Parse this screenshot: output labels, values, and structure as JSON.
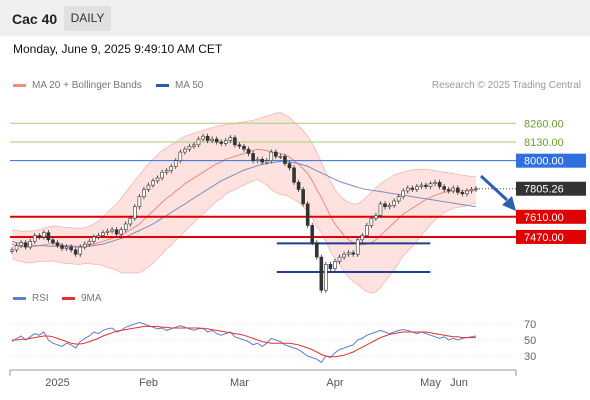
{
  "header": {
    "instrument": "Cac 40",
    "period_tab": "DAILY",
    "timestamp": "Monday, June 9, 2025 9:49:10 AM CET"
  },
  "legend": {
    "main": [
      {
        "label": "MA 20 + Bollinger Bands",
        "color": "#f28b82"
      },
      {
        "label": "MA 50",
        "color": "#2a5aa8"
      }
    ],
    "credit": "Research © 2025 Trading Central",
    "rsi": [
      {
        "label": "RSI",
        "color": "#5b7fd6"
      },
      {
        "label": "9MA",
        "color": "#e53030"
      }
    ]
  },
  "chart_data": [
    {
      "type": "candlestick",
      "title": "Cac 40",
      "ylim": [
        7150,
        8380
      ],
      "current_price": {
        "value": "7805.26",
        "y": 7805.26
      },
      "levels": [
        {
          "label": "8260.00",
          "value": 8260,
          "kind": "resistance-2"
        },
        {
          "label": "8130.00",
          "value": 8130,
          "kind": "resistance-1"
        },
        {
          "label": "8000.00",
          "value": 8000,
          "kind": "pivot"
        },
        {
          "label": "7610.00",
          "value": 7610,
          "kind": "support-1"
        },
        {
          "label": "7470.00",
          "value": 7470,
          "kind": "support-2"
        }
      ],
      "range_markers": [
        {
          "value": 7425,
          "from": "2025-03-28",
          "to": "2025-05-05"
        },
        {
          "value": 6990,
          "from": "2025-03-28",
          "to": "2025-05-05"
        }
      ],
      "x_ticks": [
        "2025",
        "Feb",
        "Mar",
        "Apr",
        "May",
        "Jun"
      ],
      "closes": [
        7380,
        7410,
        7430,
        7400,
        7440,
        7480,
        7470,
        7500,
        7450,
        7430,
        7410,
        7390,
        7400,
        7380,
        7350,
        7400,
        7420,
        7440,
        7470,
        7480,
        7500,
        7510,
        7520,
        7490,
        7520,
        7560,
        7600,
        7680,
        7750,
        7800,
        7830,
        7860,
        7880,
        7920,
        7930,
        7960,
        8000,
        8060,
        8080,
        8100,
        8110,
        8150,
        8170,
        8140,
        8150,
        8130,
        8120,
        8140,
        8160,
        8110,
        8100,
        8080,
        8050,
        8000,
        8010,
        7990,
        8000,
        8060,
        8030,
        8030,
        7980,
        7950,
        7850,
        7800,
        7700,
        7550,
        7430,
        7330,
        7100,
        7280,
        7250,
        7300,
        7330,
        7350,
        7360,
        7350,
        7450,
        7480,
        7550,
        7600,
        7620,
        7700,
        7680,
        7690,
        7720,
        7750,
        7790,
        7810,
        7800,
        7820,
        7830,
        7820,
        7840,
        7850,
        7820,
        7800,
        7790,
        7810,
        7780,
        7770,
        7790,
        7800,
        7805
      ],
      "ma20": [
        7420,
        7410,
        7405,
        7400,
        7400,
        7405,
        7410,
        7415,
        7420,
        7425,
        7420,
        7415,
        7410,
        7410,
        7405,
        7405,
        7410,
        7415,
        7420,
        7430,
        7440,
        7450,
        7460,
        7470,
        7480,
        7500,
        7520,
        7540,
        7560,
        7590,
        7620,
        7650,
        7680,
        7710,
        7740,
        7760,
        7790,
        7810,
        7840,
        7860,
        7880,
        7900,
        7920,
        7940,
        7960,
        7980,
        7990,
        8010,
        8020,
        8030,
        8040,
        8050,
        8060,
        8070,
        8080,
        8075,
        8070,
        8060,
        8055,
        8050,
        8040,
        8025,
        8000,
        7975,
        7945,
        7910,
        7860,
        7800,
        7745,
        7680,
        7615,
        7560,
        7520,
        7480,
        7450,
        7430,
        7420,
        7415,
        7420,
        7430,
        7450,
        7480,
        7510,
        7540,
        7570,
        7600,
        7630,
        7650,
        7670,
        7690,
        7710,
        7730,
        7745,
        7760,
        7770,
        7780,
        7785,
        7790,
        7790,
        7790,
        7790,
        7795,
        7795
      ],
      "bb_upper": [
        7520,
        7515,
        7510,
        7510,
        7510,
        7515,
        7520,
        7530,
        7540,
        7545,
        7545,
        7540,
        7535,
        7535,
        7530,
        7530,
        7535,
        7545,
        7560,
        7580,
        7610,
        7640,
        7670,
        7700,
        7740,
        7780,
        7820,
        7860,
        7900,
        7940,
        7980,
        8010,
        8040,
        8070,
        8090,
        8110,
        8130,
        8150,
        8170,
        8180,
        8190,
        8200,
        8210,
        8220,
        8230,
        8240,
        8245,
        8250,
        8255,
        8260,
        8265,
        8270,
        8275,
        8280,
        8290,
        8300,
        8310,
        8320,
        8330,
        8335,
        8320,
        8300,
        8270,
        8240,
        8210,
        8170,
        8120,
        8060,
        7990,
        7920,
        7860,
        7800,
        7760,
        7730,
        7710,
        7700,
        7700,
        7720,
        7750,
        7780,
        7810,
        7840,
        7860,
        7880,
        7900,
        7910,
        7920,
        7930,
        7935,
        7940,
        7940,
        7940,
        7935,
        7930,
        7925,
        7920,
        7915,
        7910,
        7905,
        7900,
        7895,
        7890,
        7890
      ],
      "bb_lower": [
        7320,
        7305,
        7300,
        7290,
        7290,
        7295,
        7300,
        7300,
        7300,
        7305,
        7295,
        7290,
        7285,
        7285,
        7280,
        7280,
        7285,
        7285,
        7280,
        7280,
        7270,
        7260,
        7250,
        7240,
        7220,
        7220,
        7220,
        7220,
        7220,
        7240,
        7260,
        7290,
        7320,
        7350,
        7390,
        7410,
        7450,
        7470,
        7510,
        7540,
        7570,
        7600,
        7630,
        7660,
        7690,
        7720,
        7735,
        7770,
        7785,
        7800,
        7815,
        7830,
        7845,
        7860,
        7870,
        7850,
        7830,
        7800,
        7780,
        7765,
        7760,
        7750,
        7730,
        7710,
        7680,
        7650,
        7600,
        7540,
        7500,
        7440,
        7370,
        7320,
        7280,
        7230,
        7190,
        7160,
        7140,
        7110,
        7090,
        7080,
        7090,
        7120,
        7160,
        7200,
        7240,
        7290,
        7340,
        7370,
        7405,
        7440,
        7480,
        7520,
        7555,
        7590,
        7615,
        7640,
        7655,
        7670,
        7675,
        7680,
        7685,
        7700,
        7700
      ],
      "ma50": [
        7440,
        7430,
        7425,
        7420,
        7415,
        7410,
        7410,
        7410,
        7405,
        7405,
        7405,
        7405,
        7405,
        7405,
        7400,
        7400,
        7400,
        7405,
        7410,
        7415,
        7420,
        7430,
        7440,
        7450,
        7460,
        7470,
        7485,
        7500,
        7515,
        7530,
        7545,
        7560,
        7580,
        7600,
        7620,
        7640,
        7660,
        7680,
        7700,
        7720,
        7740,
        7760,
        7780,
        7800,
        7820,
        7840,
        7860,
        7875,
        7890,
        7905,
        7920,
        7935,
        7945,
        7955,
        7965,
        7975,
        7980,
        7985,
        7990,
        7995,
        7995,
        7990,
        7985,
        7980,
        7970,
        7960,
        7945,
        7930,
        7915,
        7900,
        7885,
        7870,
        7855,
        7845,
        7835,
        7825,
        7815,
        7805,
        7800,
        7795,
        7790,
        7785,
        7780,
        7775,
        7770,
        7765,
        7760,
        7755,
        7750,
        7745,
        7740,
        7735,
        7730,
        7725,
        7720,
        7715,
        7710,
        7705,
        7700,
        7695,
        7690,
        7685,
        7680
      ]
    },
    {
      "type": "line",
      "title": "RSI",
      "ylim": [
        20,
        80
      ],
      "y_ticks": [
        {
          "label": "70",
          "value": 70
        },
        {
          "label": "50",
          "value": 50
        },
        {
          "label": "30",
          "value": 30
        }
      ],
      "series": [
        {
          "name": "RSI",
          "values": [
            48,
            52,
            55,
            50,
            54,
            58,
            56,
            60,
            50,
            46,
            44,
            42,
            46,
            44,
            40,
            48,
            52,
            55,
            60,
            58,
            62,
            64,
            65,
            60,
            62,
            66,
            68,
            70,
            72,
            70,
            68,
            66,
            64,
            65,
            62,
            64,
            66,
            68,
            66,
            64,
            62,
            64,
            65,
            60,
            62,
            58,
            56,
            58,
            60,
            54,
            52,
            50,
            48,
            44,
            46,
            42,
            46,
            52,
            50,
            48,
            44,
            42,
            40,
            38,
            34,
            30,
            28,
            26,
            22,
            30,
            28,
            34,
            38,
            40,
            42,
            44,
            50,
            52,
            56,
            58,
            60,
            62,
            60,
            58,
            60,
            62,
            63,
            62,
            60,
            58,
            60,
            58,
            56,
            54,
            52,
            54,
            50,
            52,
            50,
            52,
            53,
            54,
            55
          ]
        },
        {
          "name": "9MA",
          "values": [
            50,
            50,
            51,
            51,
            52,
            53,
            54,
            55,
            55,
            54,
            52,
            50,
            48,
            46,
            45,
            45,
            46,
            48,
            50,
            52,
            55,
            57,
            59,
            61,
            62,
            63,
            64,
            65,
            66,
            67,
            67,
            67,
            67,
            66,
            66,
            65,
            65,
            65,
            65,
            65,
            65,
            65,
            64,
            64,
            63,
            62,
            61,
            60,
            59,
            58,
            57,
            56,
            54,
            52,
            50,
            48,
            47,
            46,
            46,
            46,
            46,
            46,
            45,
            44,
            42,
            40,
            38,
            35,
            32,
            30,
            29,
            29,
            30,
            31,
            33,
            35,
            38,
            41,
            44,
            47,
            50,
            53,
            55,
            57,
            58,
            59,
            60,
            60,
            60,
            60,
            60,
            60,
            59,
            58,
            57,
            56,
            55,
            54,
            54,
            53,
            53,
            53,
            53
          ]
        }
      ]
    }
  ]
}
